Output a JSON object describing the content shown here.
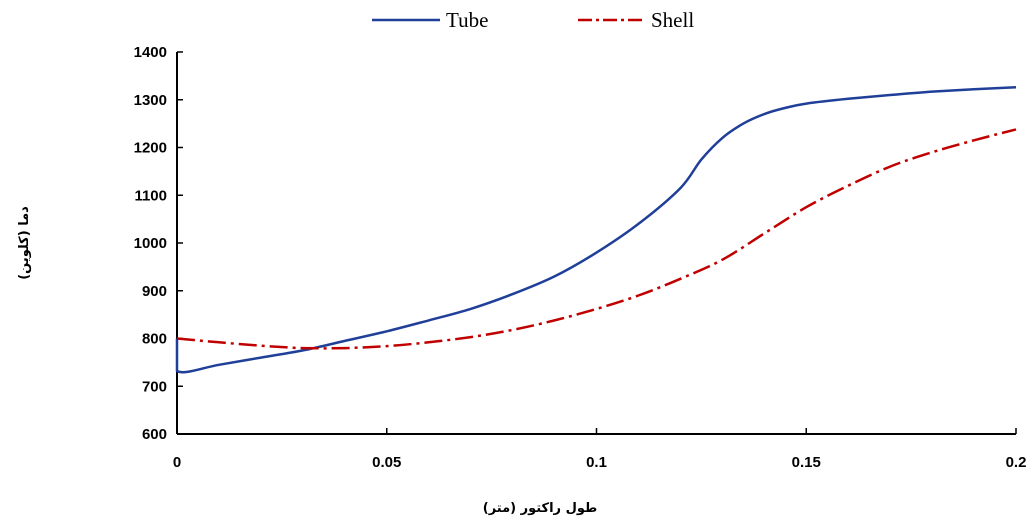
{
  "chart_data": {
    "type": "line",
    "title": "",
    "xlabel": "طول راکتور (متر)",
    "ylabel": "دما (کلوین)",
    "xlim": [
      0,
      0.2
    ],
    "ylim": [
      600,
      1400
    ],
    "x_ticks": [
      0,
      0.05,
      0.1,
      0.15,
      0.2
    ],
    "x_tick_labels": [
      "0",
      "0.05",
      "0.1",
      "0.15",
      "0.2"
    ],
    "y_ticks": [
      600,
      700,
      800,
      900,
      1000,
      1100,
      1200,
      1300,
      1400
    ],
    "y_tick_labels": [
      "600",
      "700",
      "800",
      "900",
      "1000",
      "1100",
      "1200",
      "1300",
      "1400"
    ],
    "grid": false,
    "legend_position": "top-center",
    "series": [
      {
        "name": "Tube",
        "color": "#1f3f99",
        "style": "solid",
        "points": [
          [
            0,
            800
          ],
          [
            0,
            732
          ],
          [
            0.01,
            745
          ],
          [
            0.02,
            760
          ],
          [
            0.03,
            775
          ],
          [
            0.04,
            795
          ],
          [
            0.05,
            815
          ],
          [
            0.06,
            838
          ],
          [
            0.07,
            862
          ],
          [
            0.08,
            893
          ],
          [
            0.09,
            930
          ],
          [
            0.1,
            980
          ],
          [
            0.11,
            1040
          ],
          [
            0.12,
            1115
          ],
          [
            0.125,
            1175
          ],
          [
            0.13,
            1220
          ],
          [
            0.135,
            1250
          ],
          [
            0.14,
            1270
          ],
          [
            0.145,
            1283
          ],
          [
            0.15,
            1292
          ],
          [
            0.16,
            1302
          ],
          [
            0.17,
            1310
          ],
          [
            0.18,
            1317
          ],
          [
            0.19,
            1322
          ],
          [
            0.2,
            1326
          ]
        ]
      },
      {
        "name": "Shell",
        "color": "#c00000",
        "style": "dashdot",
        "points": [
          [
            0,
            800
          ],
          [
            0.01,
            792
          ],
          [
            0.02,
            785
          ],
          [
            0.03,
            780
          ],
          [
            0.04,
            780
          ],
          [
            0.05,
            784
          ],
          [
            0.06,
            792
          ],
          [
            0.07,
            803
          ],
          [
            0.08,
            818
          ],
          [
            0.09,
            838
          ],
          [
            0.1,
            862
          ],
          [
            0.11,
            890
          ],
          [
            0.12,
            925
          ],
          [
            0.13,
            965
          ],
          [
            0.14,
            1020
          ],
          [
            0.15,
            1075
          ],
          [
            0.16,
            1120
          ],
          [
            0.17,
            1160
          ],
          [
            0.18,
            1190
          ],
          [
            0.19,
            1215
          ],
          [
            0.2,
            1238
          ]
        ]
      }
    ]
  }
}
